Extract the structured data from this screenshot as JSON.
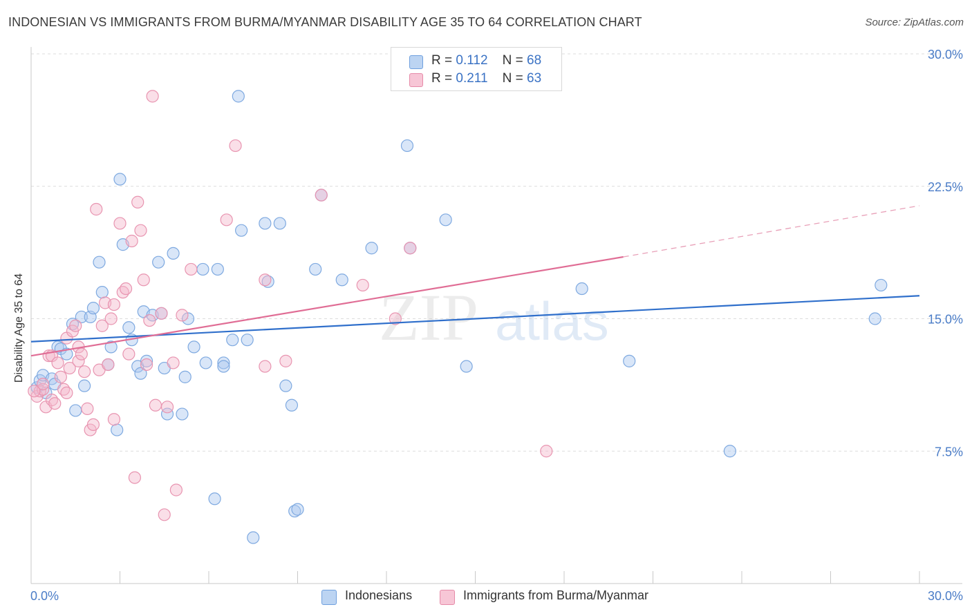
{
  "title": "INDONESIAN VS IMMIGRANTS FROM BURMA/MYANMAR DISABILITY AGE 35 TO 64 CORRELATION CHART",
  "source": "Source: ZipAtlas.com",
  "watermark": {
    "zip": "ZIP",
    "atlas": "atlas"
  },
  "legend": {
    "r_label": "R =",
    "n_label": "N =",
    "items": [
      {
        "name": "Indonesians",
        "r": "0.112",
        "n": "68",
        "color": "#6fa0de",
        "fill": "#bcd4f2"
      },
      {
        "name": "Immigrants from Burma/Myanmar",
        "r": "0.211",
        "n": "63",
        "color": "#e68aa8",
        "fill": "#f7c6d6"
      }
    ]
  },
  "chart_data": {
    "type": "scatter",
    "title": "INDONESIAN VS IMMIGRANTS FROM BURMA/MYANMAR DISABILITY AGE 35 TO 64 CORRELATION CHART",
    "xlabel": "",
    "ylabel": "Disability Age 35 to 64",
    "xlim": [
      0,
      30
    ],
    "ylim": [
      0,
      30
    ],
    "x_tick_labels": [
      "0.0%",
      "30.0%"
    ],
    "y_ticks": [
      7.5,
      15.0,
      22.5,
      30.0
    ],
    "y_tick_labels": [
      "7.5%",
      "15.0%",
      "22.5%",
      "30.0%"
    ],
    "grid": true,
    "legend_position": "top-center",
    "series": [
      {
        "name": "Indonesians",
        "color": "#6fa0de",
        "trend": {
          "x": [
            0,
            30
          ],
          "y": [
            13.7,
            16.3
          ],
          "style": "solid"
        },
        "points": [
          [
            0.2,
            11.1
          ],
          [
            0.3,
            11.5
          ],
          [
            0.4,
            11.8
          ],
          [
            0.5,
            10.8
          ],
          [
            0.7,
            11.6
          ],
          [
            0.8,
            11.3
          ],
          [
            0.9,
            13.4
          ],
          [
            1.0,
            13.3
          ],
          [
            1.2,
            13.0
          ],
          [
            1.4,
            14.7
          ],
          [
            1.5,
            9.8
          ],
          [
            1.8,
            11.2
          ],
          [
            1.7,
            15.1
          ],
          [
            2.0,
            15.1
          ],
          [
            2.1,
            15.6
          ],
          [
            2.3,
            18.2
          ],
          [
            2.4,
            16.5
          ],
          [
            2.6,
            12.4
          ],
          [
            2.7,
            13.4
          ],
          [
            2.9,
            8.7
          ],
          [
            3.0,
            22.9
          ],
          [
            3.1,
            19.2
          ],
          [
            3.3,
            14.5
          ],
          [
            3.4,
            13.8
          ],
          [
            3.6,
            12.3
          ],
          [
            3.7,
            11.9
          ],
          [
            3.8,
            15.4
          ],
          [
            3.9,
            12.6
          ],
          [
            4.1,
            15.2
          ],
          [
            4.3,
            18.2
          ],
          [
            4.4,
            15.3
          ],
          [
            4.5,
            12.2
          ],
          [
            4.6,
            9.6
          ],
          [
            4.8,
            18.7
          ],
          [
            5.1,
            9.6
          ],
          [
            5.2,
            11.7
          ],
          [
            5.3,
            15.0
          ],
          [
            5.5,
            13.4
          ],
          [
            5.8,
            17.8
          ],
          [
            5.9,
            12.5
          ],
          [
            6.2,
            4.8
          ],
          [
            6.3,
            17.8
          ],
          [
            6.5,
            12.5
          ],
          [
            6.5,
            12.3
          ],
          [
            6.8,
            13.8
          ],
          [
            7.0,
            27.6
          ],
          [
            7.1,
            20.0
          ],
          [
            7.3,
            13.8
          ],
          [
            7.5,
            2.6
          ],
          [
            7.9,
            20.4
          ],
          [
            8.0,
            17.1
          ],
          [
            8.4,
            20.4
          ],
          [
            8.6,
            11.2
          ],
          [
            8.8,
            10.1
          ],
          [
            8.9,
            4.1
          ],
          [
            9.0,
            4.2
          ],
          [
            9.8,
            22.0
          ],
          [
            9.6,
            17.8
          ],
          [
            10.5,
            17.2
          ],
          [
            11.5,
            19.0
          ],
          [
            12.7,
            24.8
          ],
          [
            12.8,
            19.0
          ],
          [
            14.0,
            20.6
          ],
          [
            14.7,
            12.3
          ],
          [
            18.6,
            16.7
          ],
          [
            20.2,
            12.6
          ],
          [
            23.6,
            7.5
          ],
          [
            28.5,
            15.0
          ],
          [
            28.7,
            16.9
          ]
        ]
      },
      {
        "name": "Immigrants from Burma/Myanmar",
        "color": "#e68aa8",
        "trend": {
          "x": [
            0,
            20
          ],
          "y": [
            12.9,
            18.5
          ],
          "extended_x": [
            20,
            30
          ],
          "extended_y": [
            18.5,
            21.4
          ],
          "style": "solid-then-dashed"
        },
        "points": [
          [
            0.2,
            10.6
          ],
          [
            0.3,
            10.9
          ],
          [
            0.4,
            11.0
          ],
          [
            0.5,
            10.0
          ],
          [
            0.6,
            12.9
          ],
          [
            0.7,
            12.9
          ],
          [
            0.7,
            10.4
          ],
          [
            0.8,
            10.2
          ],
          [
            0.9,
            12.5
          ],
          [
            1.0,
            11.7
          ],
          [
            1.1,
            11.0
          ],
          [
            1.2,
            13.9
          ],
          [
            1.3,
            12.2
          ],
          [
            1.4,
            14.3
          ],
          [
            1.5,
            14.6
          ],
          [
            1.6,
            13.4
          ],
          [
            1.6,
            12.6
          ],
          [
            1.7,
            13.0
          ],
          [
            1.8,
            12.0
          ],
          [
            1.9,
            9.9
          ],
          [
            2.0,
            8.7
          ],
          [
            2.1,
            9.0
          ],
          [
            2.2,
            21.2
          ],
          [
            2.3,
            12.1
          ],
          [
            2.4,
            14.6
          ],
          [
            2.5,
            15.9
          ],
          [
            2.6,
            12.4
          ],
          [
            2.7,
            15.0
          ],
          [
            2.8,
            15.8
          ],
          [
            2.8,
            9.3
          ],
          [
            3.0,
            20.4
          ],
          [
            3.1,
            16.5
          ],
          [
            3.2,
            16.7
          ],
          [
            3.3,
            13.0
          ],
          [
            3.4,
            19.4
          ],
          [
            3.5,
            6.0
          ],
          [
            3.6,
            21.6
          ],
          [
            3.7,
            20.0
          ],
          [
            3.8,
            17.2
          ],
          [
            3.9,
            12.4
          ],
          [
            4.0,
            14.9
          ],
          [
            4.1,
            27.6
          ],
          [
            4.2,
            10.1
          ],
          [
            4.4,
            15.3
          ],
          [
            4.5,
            3.9
          ],
          [
            4.6,
            10.0
          ],
          [
            4.8,
            12.5
          ],
          [
            4.9,
            5.3
          ],
          [
            5.1,
            15.2
          ],
          [
            5.4,
            17.8
          ],
          [
            6.6,
            20.6
          ],
          [
            6.9,
            24.8
          ],
          [
            7.9,
            12.3
          ],
          [
            7.9,
            17.2
          ],
          [
            8.6,
            12.6
          ],
          [
            9.8,
            22.0
          ],
          [
            11.2,
            16.9
          ],
          [
            12.3,
            15.0
          ],
          [
            12.8,
            19.0
          ],
          [
            17.4,
            7.5
          ],
          [
            0.4,
            11.3
          ],
          [
            0.1,
            10.9
          ],
          [
            1.2,
            10.8
          ]
        ]
      }
    ]
  }
}
